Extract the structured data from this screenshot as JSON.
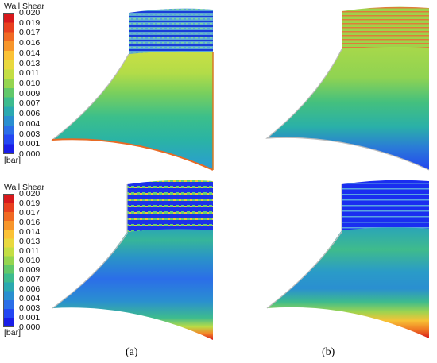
{
  "legend_top": {
    "title": "Wall Shear",
    "ticks": [
      "0.020",
      "0.019",
      "0.017",
      "0.016",
      "0.014",
      "0.013",
      "0.011",
      "0.010",
      "0.009",
      "0.007",
      "0.006",
      "0.004",
      "0.003",
      "0.001",
      "0.000"
    ],
    "unit": "[bar]"
  },
  "legend_bottom": {
    "title": "Wall Shear",
    "ticks": [
      "0.020",
      "0.019",
      "0.017",
      "0.016",
      "0.014",
      "0.013",
      "0.011",
      "0.010",
      "0.009",
      "0.007",
      "0.006",
      "0.004",
      "0.003",
      "0.001",
      "0.000"
    ],
    "unit": "[bar]"
  },
  "colormap": [
    "#d7191c",
    "#e8401f",
    "#f06a24",
    "#f7962c",
    "#fbc236",
    "#e9d93f",
    "#c4de44",
    "#95d550",
    "#62c86a",
    "#3dbb8e",
    "#2ba9b0",
    "#2a8fd0",
    "#2b6ee8",
    "#2447f3",
    "#1a1ee8"
  ],
  "captions": {
    "left": "(a)",
    "right": "(b)"
  }
}
